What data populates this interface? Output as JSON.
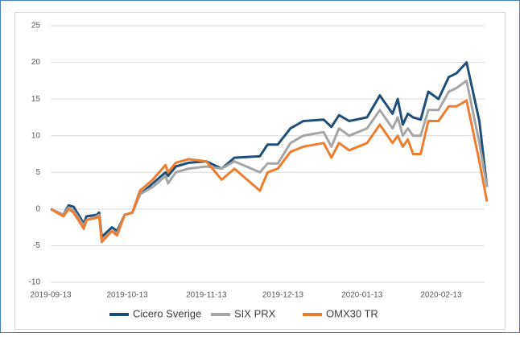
{
  "chart_data": {
    "type": "line",
    "x": [
      "2019-09-13",
      "2019-09-18",
      "2019-09-20",
      "2019-09-22",
      "2019-09-26",
      "2019-09-27",
      "2019-10-01",
      "2019-10-02",
      "2019-10-03",
      "2019-10-07",
      "2019-10-09",
      "2019-10-12",
      "2019-10-15",
      "2019-10-18",
      "2019-10-23",
      "2019-10-28",
      "2019-10-29",
      "2019-11-01",
      "2019-11-06",
      "2019-11-13",
      "2019-11-19",
      "2019-11-24",
      "2019-12-04",
      "2019-12-07",
      "2019-12-11",
      "2019-12-16",
      "2019-12-21",
      "2019-12-29",
      "2020-01-01",
      "2020-01-04",
      "2020-01-08",
      "2020-01-15",
      "2020-01-20",
      "2020-01-25",
      "2020-01-27",
      "2020-01-29",
      "2020-01-31",
      "2020-02-02",
      "2020-02-05",
      "2020-02-08",
      "2020-02-12",
      "2020-02-16",
      "2020-02-19",
      "2020-02-23",
      "2020-02-28",
      "2020-03-02"
    ],
    "series": [
      {
        "name": "Cicero Sverige",
        "color": "#1f4e79",
        "values": [
          0,
          -0.8,
          0.5,
          0.3,
          -2,
          -1,
          -0.8,
          -0.5,
          -3.8,
          -2.5,
          -3,
          -0.8,
          -0.5,
          2,
          3.5,
          5,
          4.5,
          5.8,
          6.3,
          6.5,
          5.5,
          7,
          7.2,
          8.8,
          8.8,
          11,
          12,
          12.2,
          11.2,
          12.8,
          12,
          12.5,
          15.5,
          13,
          15,
          11.5,
          13,
          12.5,
          12.2,
          16,
          15,
          18,
          18.5,
          20,
          12,
          3
        ]
      },
      {
        "name": "SIX PRX",
        "color": "#a5a5a5",
        "values": [
          0,
          -0.8,
          0.2,
          -0.2,
          -2.3,
          -1.5,
          -1,
          -0.8,
          -4.2,
          -3,
          -3.3,
          -0.8,
          -0.5,
          2,
          3,
          4.5,
          3.5,
          5,
          5.5,
          5.8,
          5.5,
          6.5,
          5,
          6.2,
          6.2,
          9,
          10,
          10.5,
          8.5,
          11,
          10,
          11,
          13.5,
          11,
          12.5,
          10,
          11,
          10,
          10,
          13.5,
          13.5,
          16,
          16.5,
          17.5,
          9,
          3
        ]
      },
      {
        "name": "OMX30 TR",
        "color": "#ed7d31",
        "values": [
          0,
          -1,
          0,
          -0.5,
          -2.7,
          -1.5,
          -1.2,
          -1,
          -4.5,
          -3,
          -3.6,
          -0.8,
          -0.5,
          2.5,
          4,
          6,
          5,
          6.3,
          6.8,
          6.5,
          4,
          5.5,
          2.5,
          5,
          5.5,
          7.8,
          8.5,
          9,
          7,
          9,
          8,
          9,
          11.5,
          9,
          10,
          8.5,
          9.5,
          7.5,
          7.5,
          12,
          12,
          14,
          14,
          14.8,
          6.5,
          1
        ]
      }
    ],
    "xlim": [
      "2019-09-13",
      "2020-03-02"
    ],
    "xticks": [
      "2019-09-13",
      "2019-10-13",
      "2019-11-13",
      "2019-12-13",
      "2020-01-13",
      "2020-02-13"
    ],
    "ylim": [
      -10,
      25
    ],
    "yticks": [
      -10,
      -5,
      0,
      5,
      10,
      15,
      20,
      25
    ],
    "grid": true,
    "legend": "bottom"
  }
}
